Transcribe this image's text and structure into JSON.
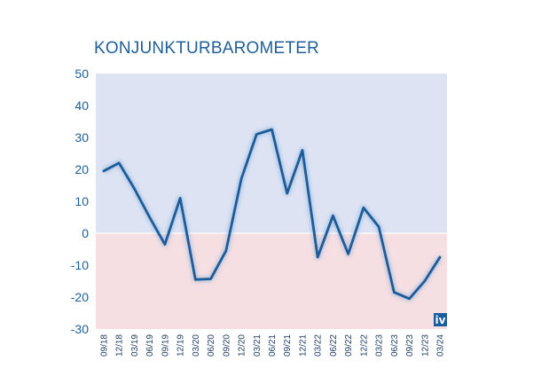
{
  "chart_data": {
    "type": "line",
    "title": "KONJUNKTURBAROMETER",
    "xlabel": "",
    "ylabel": "",
    "ylim": [
      -30,
      50
    ],
    "yticks": [
      50,
      40,
      30,
      20,
      10,
      0,
      -10,
      -20,
      -30
    ],
    "x": [
      "09/18",
      "12/18",
      "03/19",
      "06/19",
      "09/19",
      "12/19",
      "03/20",
      "06/20",
      "09/20",
      "12/20",
      "03/21",
      "06/21",
      "09/21",
      "12/21",
      "03/22",
      "06/22",
      "09/22",
      "12/22",
      "03/23",
      "06/23",
      "09/23",
      "12/23",
      "03/24"
    ],
    "series": [
      {
        "values": [
          19.5,
          22,
          14,
          5,
          -3.5,
          11,
          -14.5,
          -14.3,
          -5.5,
          17,
          31,
          32.5,
          12.5,
          26,
          -7.5,
          5.5,
          -6.5,
          8,
          2,
          -18.5,
          -20.5,
          -15,
          -7.5
        ]
      }
    ],
    "grid": false,
    "logo_text": "iv",
    "colors": {
      "line": "#1c5c9a",
      "positive_bg": "#dde3f3",
      "negative_bg": "#f5dfe2",
      "title": "#1f5f99",
      "logo_bg": "#1c5c9a"
    }
  }
}
